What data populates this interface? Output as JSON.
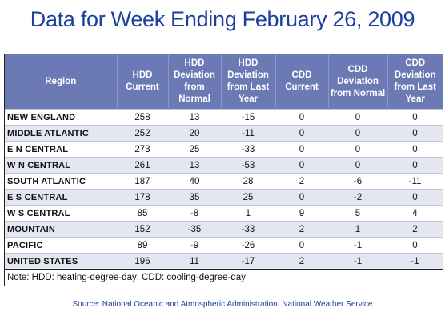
{
  "title": "Data for Week Ending February 26, 2009",
  "table": {
    "headers": [
      "Region",
      "HDD Current",
      "HDD Deviation from Normal",
      "HDD Deviation from Last Year",
      "CDD Current",
      "CDD Deviation from Normal",
      "CDD Deviation from Last Year"
    ],
    "rows": [
      [
        "NEW ENGLAND",
        "258",
        "13",
        "-15",
        "0",
        "0",
        "0"
      ],
      [
        "MIDDLE ATLANTIC",
        "252",
        "20",
        "-11",
        "0",
        "0",
        "0"
      ],
      [
        "E N CENTRAL",
        "273",
        "25",
        "-33",
        "0",
        "0",
        "0"
      ],
      [
        "W N CENTRAL",
        "261",
        "13",
        "-53",
        "0",
        "0",
        "0"
      ],
      [
        "SOUTH ATLANTIC",
        "187",
        "40",
        "28",
        "2",
        "-6",
        "-11"
      ],
      [
        "E S CENTRAL",
        "178",
        "35",
        "25",
        "0",
        "-2",
        "0"
      ],
      [
        "W S CENTRAL",
        "85",
        "-8",
        "1",
        "9",
        "5",
        "4"
      ],
      [
        "MOUNTAIN",
        "152",
        "-35",
        "-33",
        "2",
        "1",
        "2"
      ],
      [
        "PACIFIC",
        "89",
        "-9",
        "-26",
        "0",
        "-1",
        "0"
      ],
      [
        "UNITED STATES",
        "196",
        "11",
        "-17",
        "2",
        "-1",
        "-1"
      ]
    ]
  },
  "note": "Note: HDD: heating-degree-day; CDD: cooling-degree-day",
  "source": "Source:  National Oceanic and Atmospheric Administration, National Weather Service",
  "colors": {
    "title": "#1a3f9c",
    "header_bg": "#6b7ab5",
    "stripe_bg": "#e4e7f1"
  }
}
